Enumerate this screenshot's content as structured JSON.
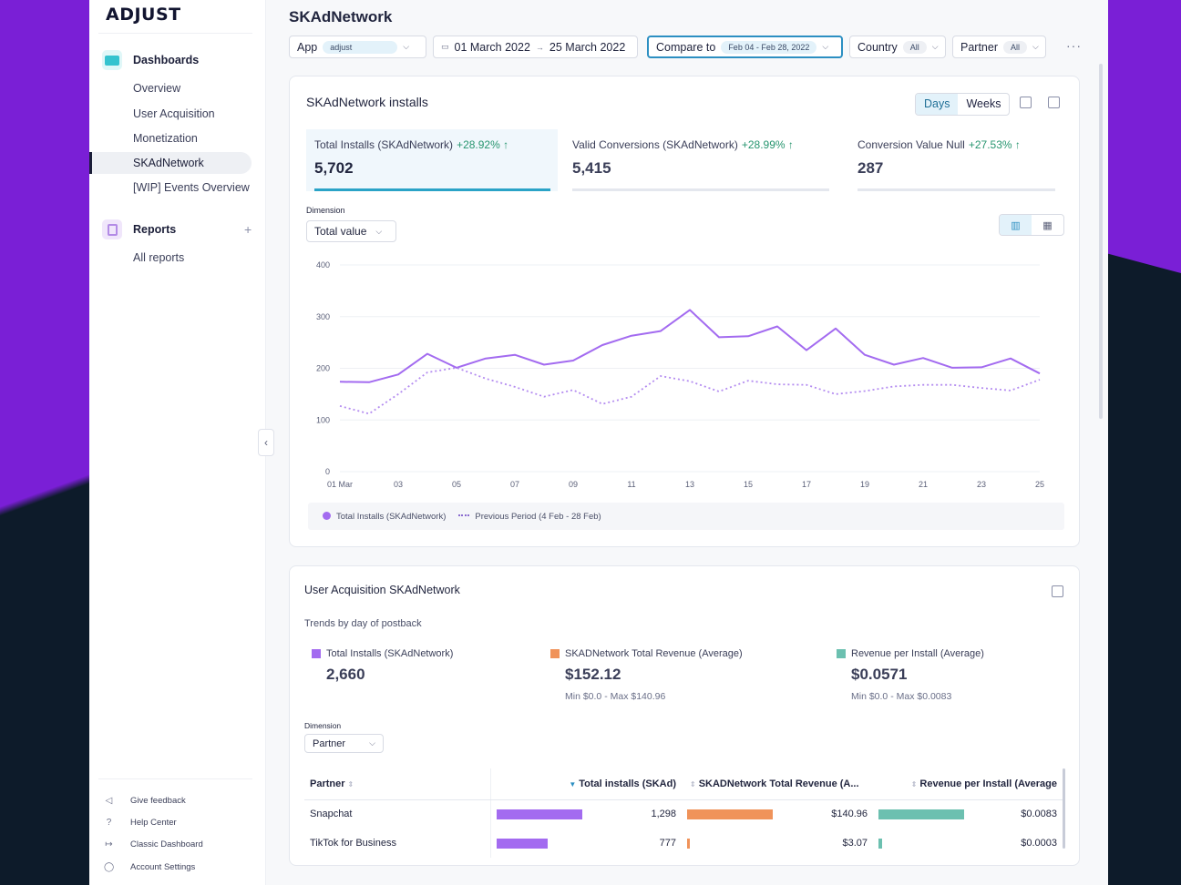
{
  "brand": {
    "logo": "ADJUST"
  },
  "sidebar": {
    "dashboards_label": "Dashboards",
    "dashboards_items": [
      "Overview",
      "User Acquisition",
      "Monetization",
      "SKAdNetwork",
      "[WIP] Events Overview"
    ],
    "active_item": "SKAdNetwork",
    "reports_label": "Reports",
    "reports_items": [
      "All reports"
    ],
    "footer": [
      "Give feedback",
      "Help Center",
      "Classic Dashboard",
      "Account Settings"
    ]
  },
  "page": {
    "title": "SKAdNetwork"
  },
  "filters": {
    "app_label": "App",
    "app_value": "adjust",
    "date_start": "01 March 2022",
    "date_end": "25 March 2022",
    "compare_label": "Compare to",
    "compare_value": "Feb 04 - Feb 28, 2022",
    "country_label": "Country",
    "country_value": "All",
    "partner_label": "Partner",
    "partner_value": "All",
    "more": "···"
  },
  "installs_card": {
    "title": "SKAdNetwork installs",
    "toggle": [
      "Days",
      "Weeks"
    ],
    "active_toggle": "Days",
    "kpis": [
      {
        "label": "Total Installs (SKAdNetwork)",
        "change": "+28.92% ↑",
        "value": "5,702"
      },
      {
        "label": "Valid Conversions (SKAdNetwork)",
        "change": "+28.99% ↑",
        "value": "5,415"
      },
      {
        "label": "Conversion Value Null",
        "change": "+27.53% ↑",
        "value": "287"
      }
    ],
    "dimension_label": "Dimension",
    "dimension_value": "Total value",
    "legend": [
      "Total Installs (SKAdNetwork)",
      "Previous Period (4 Feb - 28 Feb)"
    ]
  },
  "chart_data": {
    "type": "line",
    "x": [
      "01 Mar",
      "02",
      "03",
      "04",
      "05",
      "06",
      "07",
      "08",
      "09",
      "10",
      "11",
      "12",
      "13",
      "14",
      "15",
      "16",
      "17",
      "18",
      "19",
      "20",
      "21",
      "22",
      "23",
      "24",
      "25"
    ],
    "x_tick_labels": [
      "01 Mar",
      "03",
      "05",
      "07",
      "09",
      "11",
      "13",
      "15",
      "17",
      "19",
      "21",
      "23",
      "25"
    ],
    "series": [
      {
        "name": "Total Installs (SKAdNetwork)",
        "color": "#a36bf0",
        "style": "solid",
        "values": [
          174,
          173,
          188,
          228,
          201,
          219,
          226,
          207,
          215,
          245,
          263,
          272,
          313,
          260,
          262,
          281,
          235,
          277,
          226,
          207,
          220,
          201,
          202,
          219,
          190
        ]
      },
      {
        "name": "Previous Period (4 Feb - 28 Feb)",
        "color": "#b48cf0",
        "style": "dotted",
        "values": [
          127,
          112,
          150,
          192,
          201,
          180,
          164,
          145,
          158,
          131,
          145,
          185,
          175,
          155,
          176,
          169,
          168,
          150,
          156,
          165,
          168,
          168,
          162,
          157,
          178
        ]
      }
    ],
    "ylim": [
      0,
      400
    ],
    "yticks": [
      0,
      100,
      200,
      300,
      400
    ],
    "grid": true,
    "legend": "bottom"
  },
  "ua_card": {
    "title": "User Acquisition SKAdNetwork",
    "subtitle": "Trends by day of postback",
    "stats": [
      {
        "label": "Total Installs (SKAdNetwork)",
        "value": "2,660",
        "minmax": "",
        "color": "#a36bf0"
      },
      {
        "label": "SKADNetwork Total Revenue (Average)",
        "value": "$152.12",
        "minmax": "Min $0.0 - Max $140.96",
        "color": "#f0935a"
      },
      {
        "label": "Revenue per Install (Average)",
        "value": "$0.0571",
        "minmax": "Min $0.0 - Max $0.0083",
        "color": "#6cc0b0"
      }
    ],
    "dimension_label": "Dimension",
    "dimension_value": "Partner",
    "table": {
      "headers": [
        "Partner",
        "Total installs (SKAd)",
        "SKADNetwork Total Revenue (A...",
        "Revenue per Install (Average"
      ],
      "rows": [
        {
          "partner": "Snapchat",
          "installs": "1,298",
          "revenue": "$140.96",
          "rpi": "$0.0083",
          "installs_frac": 1.0,
          "revenue_frac": 1.0,
          "rpi_frac": 1.0
        },
        {
          "partner": "TikTok for Business",
          "installs": "777",
          "revenue": "$3.07",
          "rpi": "$0.0003",
          "installs_frac": 0.6,
          "revenue_frac": 0.03,
          "rpi_frac": 0.04
        }
      ]
    }
  }
}
